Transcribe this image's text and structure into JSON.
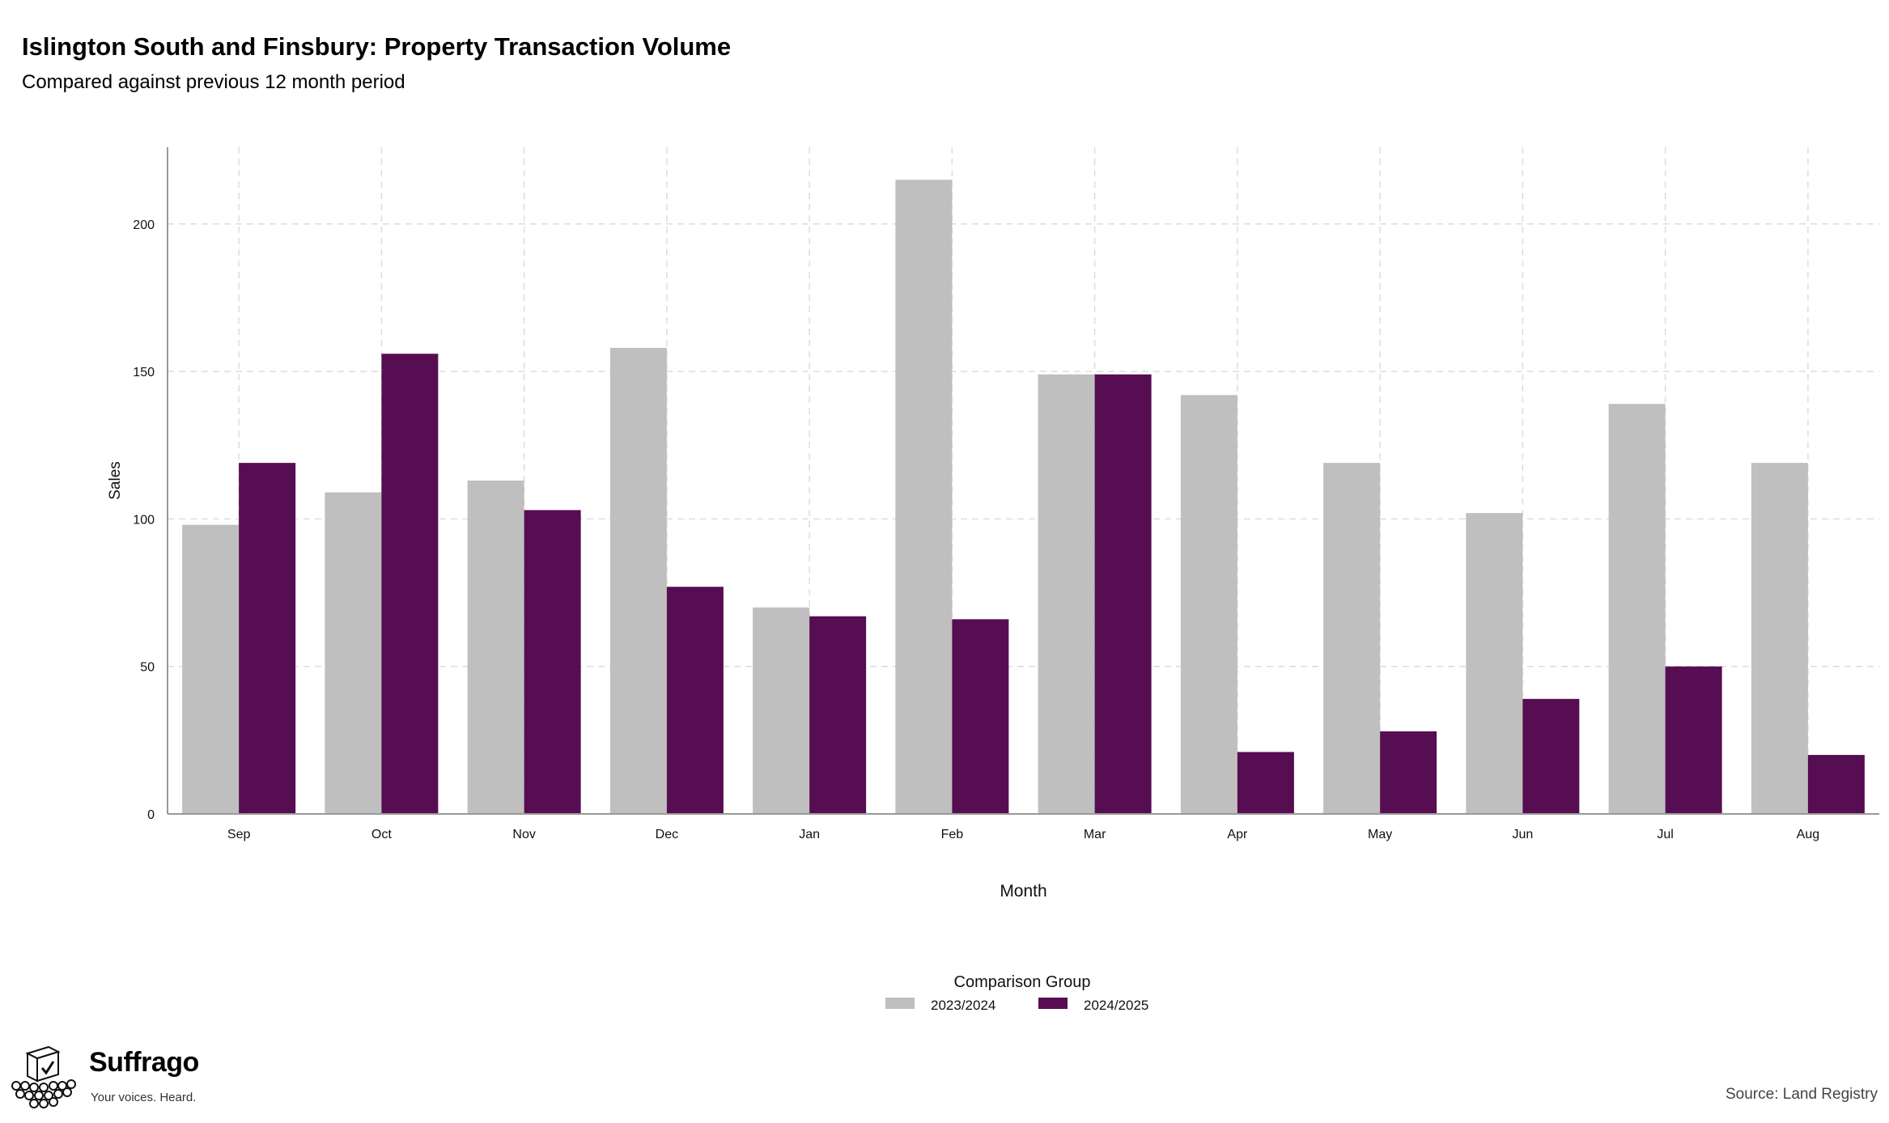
{
  "title": "Islington South and Finsbury: Property Transaction Volume",
  "subtitle": "Compared against previous 12 month period",
  "source": "Source: Land Registry",
  "logo": {
    "name": "Suffrago",
    "tagline": "Your voices. Heard."
  },
  "colors": {
    "grid": "#dddddd",
    "axis": "#999999"
  },
  "chart_data": {
    "type": "bar",
    "title": "",
    "xlabel": "Month",
    "ylabel": "Sales",
    "ylim": [
      0,
      226
    ],
    "yticks": [
      0,
      50,
      100,
      150,
      200
    ],
    "grid": true,
    "legend_title": "Comparison Group",
    "legend_position": "bottom",
    "categories": [
      "Sep",
      "Oct",
      "Nov",
      "Dec",
      "Jan",
      "Feb",
      "Mar",
      "Apr",
      "May",
      "Jun",
      "Jul",
      "Aug"
    ],
    "series": [
      {
        "name": "2023/2024",
        "color": "#bfbfbf",
        "values": [
          98,
          109,
          113,
          158,
          70,
          215,
          149,
          142,
          119,
          102,
          139,
          119
        ]
      },
      {
        "name": "2024/2025",
        "color": "#560d52",
        "values": [
          119,
          156,
          103,
          77,
          67,
          66,
          149,
          21,
          28,
          39,
          50,
          20
        ]
      }
    ]
  }
}
